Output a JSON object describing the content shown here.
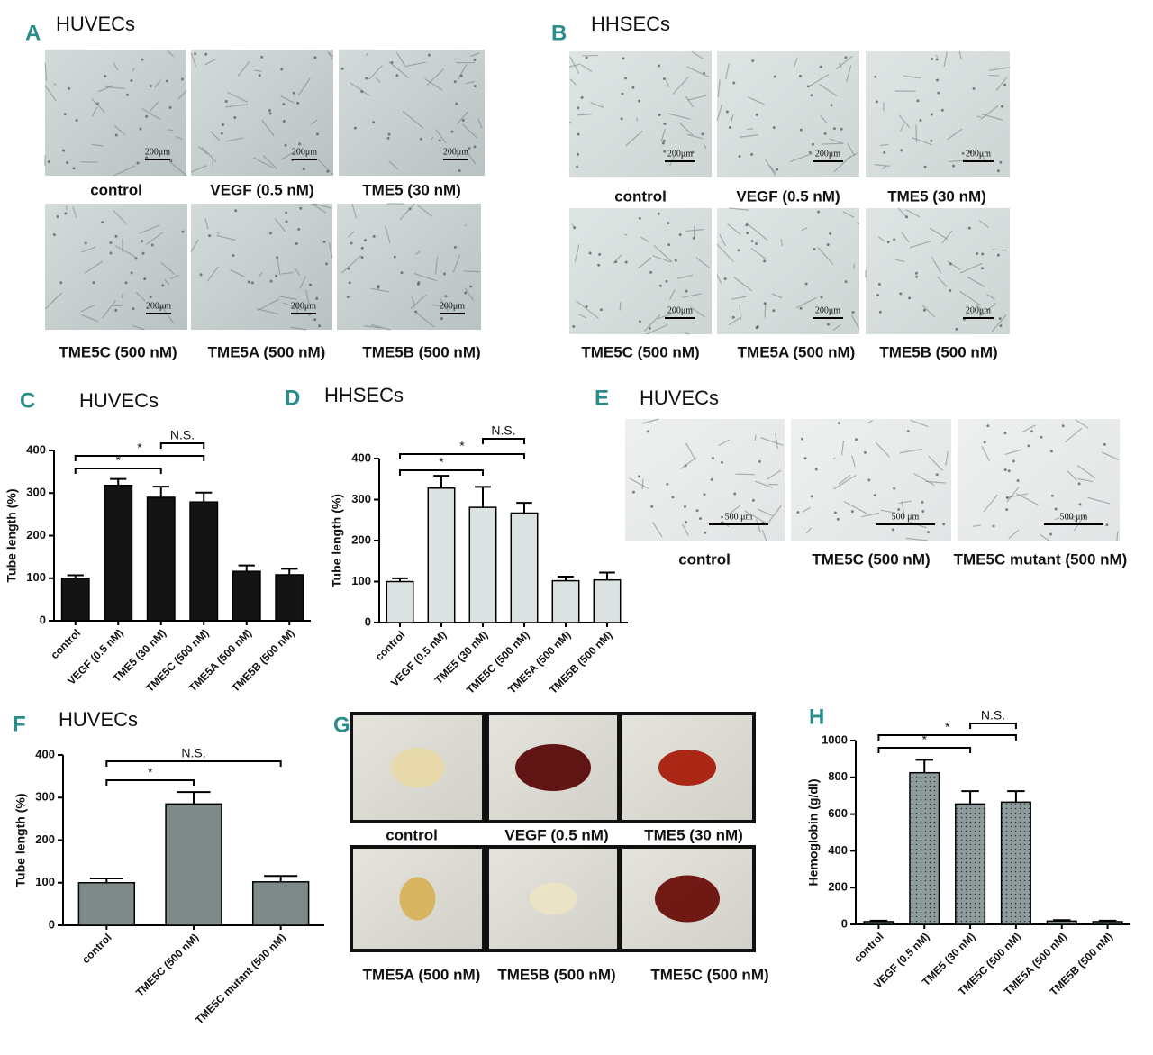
{
  "image_panels": [
    {
      "letter": "A",
      "title": "HUVECs",
      "scale_label": "200μm",
      "labels": [
        "control",
        "VEGF (0.5 nM)",
        "TME5 (30 nM)",
        "TME5C (500 nM)",
        "TME5A (500 nM)",
        "TME5B (500 nM)"
      ]
    },
    {
      "letter": "B",
      "title": "HHSECs",
      "scale_label": "200μm",
      "labels": [
        "control",
        "VEGF (0.5 nM)",
        "TME5 (30 nM)",
        "TME5C (500 nM)",
        "TME5A (500 nM)",
        "TME5B (500 nM)"
      ]
    },
    {
      "letter": "E",
      "title": "HUVECs",
      "scale_label": "500 μm",
      "labels": [
        "control",
        "TME5C (500 nM)",
        "TME5C mutant (500 nM)"
      ]
    },
    {
      "letter": "G",
      "labels": [
        "control",
        "VEGF (0.5 nM)",
        "TME5 (30 nM)",
        "TME5A (500 nM)",
        "TME5B (500 nM)",
        "TME5C (500 nM)"
      ]
    }
  ],
  "chart_data": [
    {
      "type": "bar",
      "panel_label": "C",
      "title": "HUVECs",
      "y_label": "Tube length (%)",
      "categories": [
        "control",
        "VEGF (0.5 nM)",
        "TME5 (30 nM)",
        "TME5C (500 nM)",
        "TME5A (500 nM)",
        "TME5B (500 nM)"
      ],
      "values": [
        100,
        318,
        290,
        279,
        116,
        108
      ],
      "errors": [
        7,
        15,
        25,
        22,
        14,
        14
      ],
      "color": "#141414",
      "ylim": [
        0,
        400
      ],
      "yticks": [
        0,
        100,
        200,
        300,
        400
      ],
      "annotations": [
        "*",
        "*",
        "N.S."
      ]
    },
    {
      "type": "bar",
      "panel_label": "D",
      "title": "HHSECs",
      "y_label": "Tube length (%)",
      "categories": [
        "control",
        "VEGF (0.5 nM)",
        "TME5 (30 nM)",
        "TME5C (500 nM)",
        "TME5A (500 nM)",
        "TME5B (500 nM)"
      ],
      "values": [
        100,
        328,
        281,
        267,
        102,
        104
      ],
      "errors": [
        8,
        30,
        50,
        25,
        10,
        18
      ],
      "color": "#dce2e2",
      "ylim": [
        0,
        400
      ],
      "yticks": [
        0,
        100,
        200,
        300,
        400
      ],
      "annotations": [
        "*",
        "*",
        "N.S."
      ]
    },
    {
      "type": "bar",
      "panel_label": "F",
      "title": "HUVECs",
      "y_label": "Tube length (%)",
      "categories": [
        "control",
        "TME5C (500 nM)",
        "TME5C mutant (500 nM)"
      ],
      "values": [
        100,
        285,
        102
      ],
      "errors": [
        10,
        28,
        14
      ],
      "color": "#7e8a8a",
      "ylim": [
        0,
        400
      ],
      "yticks": [
        0,
        100,
        200,
        300,
        400
      ],
      "annotations": [
        "*",
        "N.S."
      ]
    },
    {
      "type": "bar",
      "panel_label": "H",
      "y_label": "Hemoglobin (g/dl)",
      "categories": [
        "control",
        "VEGF (0.5 nM)",
        "TME5 (30 nM)",
        "TME5C (500 nM)",
        "TME5A (500 nM)",
        "TME5B (500 nM)"
      ],
      "values": [
        15,
        825,
        655,
        665,
        18,
        15
      ],
      "errors": [
        5,
        70,
        70,
        60,
        5,
        5
      ],
      "color": "#8e9c9e",
      "pattern": "dots",
      "ylim": [
        0,
        1000
      ],
      "yticks": [
        0,
        200,
        400,
        600,
        800,
        1000
      ],
      "annotations": [
        "*",
        "*",
        "N.S."
      ]
    }
  ]
}
